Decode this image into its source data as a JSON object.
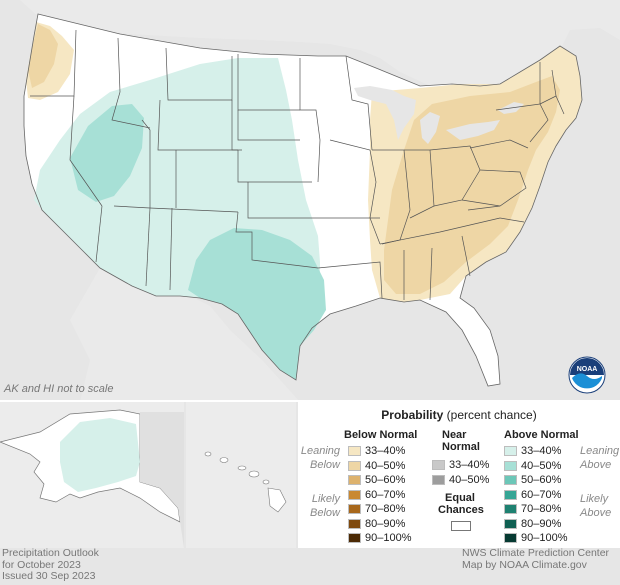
{
  "map": {
    "scale_note": "AK and HI not to scale",
    "logo_text": "NOAA"
  },
  "legend": {
    "title_bold": "Probability",
    "title_rest": " (percent chance)",
    "below_header": "Below Normal",
    "near_header_1": "Near",
    "near_header_2": "Normal",
    "above_header": "Above Normal",
    "leaning_left_1": "Leaning",
    "leaning_left_2": "Below",
    "likely_left_1": "Likely",
    "likely_left_2": "Below",
    "leaning_right_1": "Leaning",
    "leaning_right_2": "Above",
    "likely_right_1": "Likely",
    "likely_right_2": "Above",
    "equal_1": "Equal",
    "equal_2": "Chances",
    "below": [
      {
        "label": "33–40%",
        "color": "#f6e7c3"
      },
      {
        "label": "40–50%",
        "color": "#eed6a5"
      },
      {
        "label": "50–60%",
        "color": "#ddb26d"
      },
      {
        "label": "60–70%",
        "color": "#c98832"
      },
      {
        "label": "70–80%",
        "color": "#a8681c"
      },
      {
        "label": "80–90%",
        "color": "#7f4a0f"
      },
      {
        "label": "90–100%",
        "color": "#4c2a05"
      }
    ],
    "near": [
      {
        "label": "33–40%",
        "color": "#c9c9c9"
      },
      {
        "label": "40–50%",
        "color": "#9d9d9d"
      }
    ],
    "above": [
      {
        "label": "33–40%",
        "color": "#d6f0ea"
      },
      {
        "label": "40–50%",
        "color": "#a7e0d6"
      },
      {
        "label": "50–60%",
        "color": "#6cc7b8"
      },
      {
        "label": "60–70%",
        "color": "#36a595"
      },
      {
        "label": "70–80%",
        "color": "#1e8171"
      },
      {
        "label": "80–90%",
        "color": "#0f5f52"
      },
      {
        "label": "90–100%",
        "color": "#063a32"
      }
    ]
  },
  "footer": {
    "left_1": "Precipitation Outlook",
    "left_2": "for October 2023",
    "left_3": "Issued 30 Sep 2023",
    "right_1": "NWS Climate Prediction Center",
    "right_2": "Map by NOAA Climate.gov"
  },
  "colors": {
    "background": "#e6e6e6",
    "land": "#ffffff",
    "leaning_above": "#d6f0ea",
    "above_40_50": "#a7e0d6",
    "leaning_below": "#f6e7c3",
    "below_40_50": "#eed6a5"
  }
}
